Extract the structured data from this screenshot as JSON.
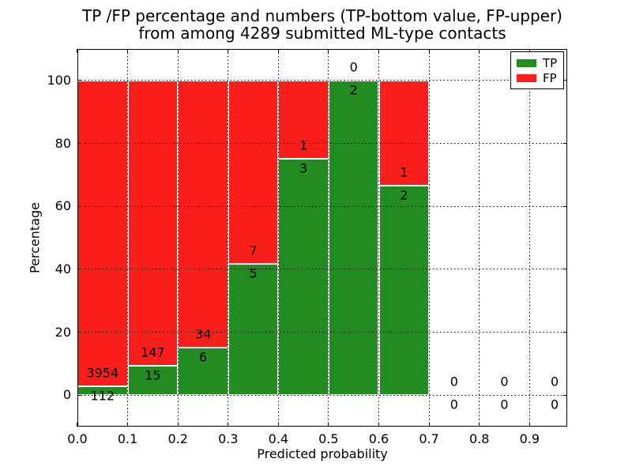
{
  "colors": {
    "tp": "#228b22",
    "fp": "#fa1e1a",
    "grid": "#000000",
    "text": "#000000",
    "background": "#ffffff",
    "bar_edge": "#ffffff"
  },
  "chart_data": {
    "type": "bar",
    "stacked": true,
    "title_line1": "TP /FP percentage and numbers (TP-bottom value, FP-upper)",
    "title_line2": "from among 4289 submitted ML-type contacts",
    "xlabel": "Predicted probability",
    "ylabel": "Percentage",
    "xlim": [
      0,
      0.975
    ],
    "ylim": [
      -10,
      110
    ],
    "grid": true,
    "legend_position": "upper right",
    "legend": [
      {
        "label": "TP",
        "color": "#228b22"
      },
      {
        "label": "FP",
        "color": "#fa1e1a"
      }
    ],
    "x_ticks": [
      {
        "value": 0.0,
        "label": "0.0"
      },
      {
        "value": 0.1,
        "label": "0.1"
      },
      {
        "value": 0.2,
        "label": "0.2"
      },
      {
        "value": 0.3,
        "label": "0.3"
      },
      {
        "value": 0.4,
        "label": "0.4"
      },
      {
        "value": 0.5,
        "label": "0.5"
      },
      {
        "value": 0.6,
        "label": "0.6"
      },
      {
        "value": 0.7,
        "label": "0.7"
      },
      {
        "value": 0.8,
        "label": "0.8"
      },
      {
        "value": 0.9,
        "label": "0.9"
      }
    ],
    "y_ticks": [
      0,
      20,
      40,
      60,
      80,
      100
    ],
    "bars": [
      {
        "x0": 0.0,
        "x1": 0.1,
        "tp": 112,
        "fp": 3954,
        "tp_pct": 2.75,
        "fp_pct": 97.25
      },
      {
        "x0": 0.1,
        "x1": 0.2,
        "tp": 15,
        "fp": 147,
        "tp_pct": 9.26,
        "fp_pct": 90.74
      },
      {
        "x0": 0.2,
        "x1": 0.3,
        "tp": 6,
        "fp": 34,
        "tp_pct": 15.0,
        "fp_pct": 85.0
      },
      {
        "x0": 0.3,
        "x1": 0.4,
        "tp": 5,
        "fp": 7,
        "tp_pct": 41.67,
        "fp_pct": 58.33
      },
      {
        "x0": 0.4,
        "x1": 0.5,
        "tp": 3,
        "fp": 1,
        "tp_pct": 75.0,
        "fp_pct": 25.0
      },
      {
        "x0": 0.5,
        "x1": 0.6,
        "tp": 2,
        "fp": 0,
        "tp_pct": 100.0,
        "fp_pct": 0.0
      },
      {
        "x0": 0.6,
        "x1": 0.7,
        "tp": 2,
        "fp": 1,
        "tp_pct": 66.67,
        "fp_pct": 33.33
      },
      {
        "x0": 0.7,
        "x1": 0.8,
        "tp": 0,
        "fp": 0,
        "tp_pct": 0.0,
        "fp_pct": 0.0
      },
      {
        "x0": 0.8,
        "x1": 0.9,
        "tp": 0,
        "fp": 0,
        "tp_pct": 0.0,
        "fp_pct": 0.0
      },
      {
        "x0": 0.9,
        "x1": 1.0,
        "tp": 0,
        "fp": 0,
        "tp_pct": 0.0,
        "fp_pct": 0.0
      }
    ]
  }
}
